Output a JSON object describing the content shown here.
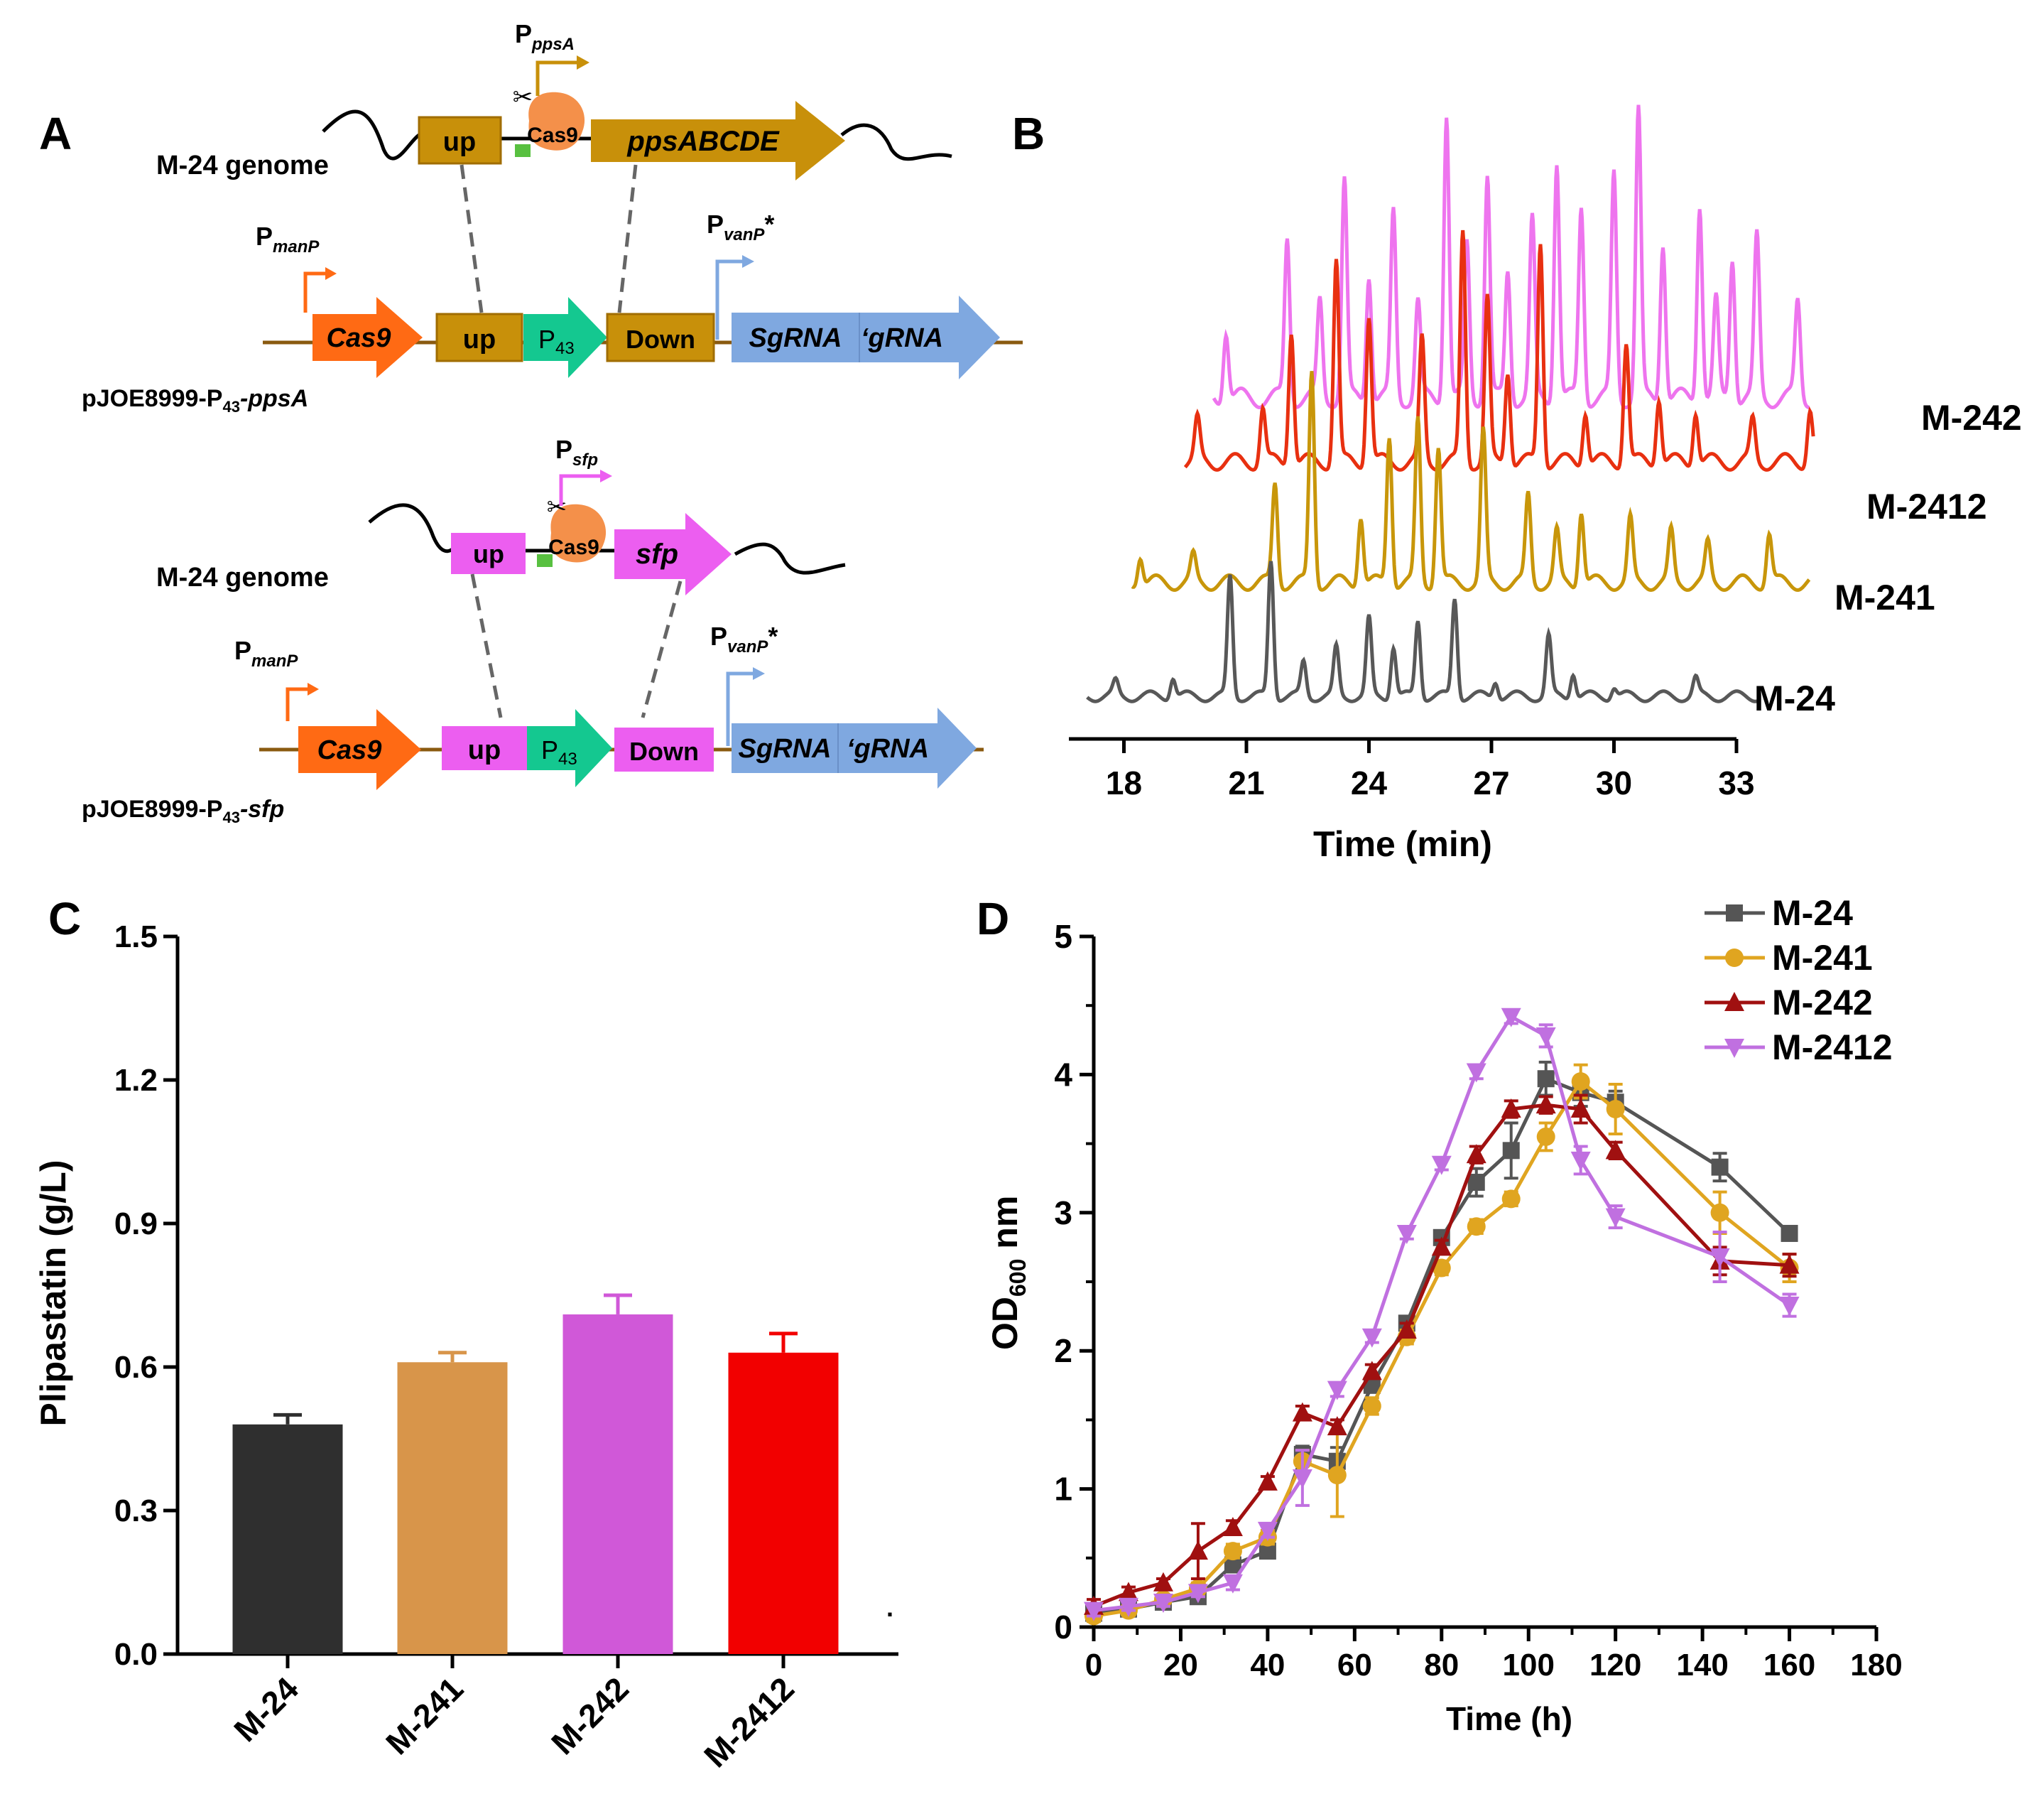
{
  "colors": {
    "ppsa_gold": "#c8900a",
    "sfp_magenta": "#ec5ef0",
    "cas9_orange": "#ff6a14",
    "p43_teal": "#14c890",
    "sgrna_blue": "#7fa8e0",
    "backbone": "#8a5a10",
    "m24": "#555555",
    "m241": "#d9a31a",
    "m242": "#9a1010",
    "m2412": "#c070e0",
    "trace_m242": "#ee74ee",
    "trace_m2412": "#e83010",
    "trace_m241": "#c8960a",
    "trace_m24": "#585858"
  },
  "panel_a": {
    "label": "A",
    "top": {
      "promoter": "P",
      "promoter_sub": "ppsA",
      "genome_label": "M-24 genome",
      "up": "up",
      "cas9": "Cas9",
      "gene": "ppsABCDE",
      "manP": "P",
      "manP_sub": "manP",
      "vanP": "P",
      "vanP_sub": "vanP",
      "vanP_star": "*",
      "cas9_gene": "Cas9",
      "p43": "P",
      "p43_sub": "43",
      "down": "Down",
      "sgrna": "SgRNA",
      "grna": "‘gRNA",
      "plasmid_a": "pJOE8999-P",
      "plasmid_sub": "43",
      "plasmid_b": "-ppsA"
    },
    "bottom": {
      "promoter": "P",
      "promoter_sub": "sfp",
      "genome_label": "M-24 genome",
      "up": "up",
      "cas9": "Cas9",
      "gene": "sfp",
      "manP": "P",
      "manP_sub": "manP",
      "vanP": "P",
      "vanP_sub": "vanP",
      "vanP_star": "*",
      "cas9_gene": "Cas9",
      "p43": "P",
      "p43_sub": "43",
      "down": "Down",
      "sgrna": "SgRNA",
      "grna": "‘gRNA",
      "plasmid_a": "pJOE8999-P",
      "plasmid_sub": "43",
      "plasmid_b": "-sfp"
    }
  },
  "chart_data": [
    {
      "panel": "B",
      "type": "line",
      "title": "",
      "xlabel": "Time (min)",
      "ylabel": "",
      "xlim": [
        17,
        33
      ],
      "xticks": [
        18,
        21,
        24,
        27,
        30,
        33
      ],
      "grid": false,
      "traces": [
        {
          "name": "M-242",
          "start": 20.2,
          "end": 34.8,
          "peaks": [
            [
              20.5,
              0.22
            ],
            [
              22.0,
              0.5
            ],
            [
              22.8,
              0.3
            ],
            [
              23.4,
              0.68
            ],
            [
              24.0,
              0.4
            ],
            [
              24.6,
              0.58
            ],
            [
              25.2,
              0.3
            ],
            [
              25.9,
              0.9
            ],
            [
              26.4,
              0.48
            ],
            [
              26.9,
              0.7
            ],
            [
              27.4,
              0.4
            ],
            [
              28.0,
              0.55
            ],
            [
              28.6,
              0.75
            ],
            [
              29.2,
              0.6
            ],
            [
              30.0,
              0.7
            ],
            [
              30.6,
              0.9
            ],
            [
              31.2,
              0.5
            ],
            [
              32.1,
              0.62
            ],
            [
              32.5,
              0.3
            ],
            [
              32.9,
              0.45
            ],
            [
              33.5,
              0.5
            ],
            [
              34.5,
              0.3
            ]
          ]
        },
        {
          "name": "M-2412",
          "start": 19.5,
          "end": 35.0,
          "peaks": [
            [
              19.8,
              0.15
            ],
            [
              21.4,
              0.2
            ],
            [
              22.1,
              0.5
            ],
            [
              23.2,
              0.75
            ],
            [
              24.0,
              0.55
            ],
            [
              25.3,
              0.45
            ],
            [
              26.3,
              0.85
            ],
            [
              26.9,
              0.6
            ],
            [
              27.4,
              0.35
            ],
            [
              28.2,
              0.82
            ],
            [
              29.3,
              0.2
            ],
            [
              30.3,
              0.45
            ],
            [
              31.1,
              0.25
            ],
            [
              32.0,
              0.2
            ],
            [
              33.4,
              0.15
            ],
            [
              34.8,
              0.2
            ]
          ]
        },
        {
          "name": "M-241",
          "start": 18.2,
          "end": 34.8,
          "peaks": [
            [
              18.4,
              0.12
            ],
            [
              19.7,
              0.1
            ],
            [
              21.7,
              0.4
            ],
            [
              22.6,
              0.85
            ],
            [
              23.8,
              0.28
            ],
            [
              24.5,
              0.6
            ],
            [
              25.2,
              0.65
            ],
            [
              25.7,
              0.55
            ],
            [
              26.8,
              0.6
            ],
            [
              27.9,
              0.35
            ],
            [
              28.6,
              0.2
            ],
            [
              29.2,
              0.3
            ],
            [
              30.4,
              0.25
            ],
            [
              31.4,
              0.2
            ],
            [
              32.3,
              0.15
            ],
            [
              33.8,
              0.2
            ]
          ]
        },
        {
          "name": "M-24",
          "start": 17.1,
          "end": 33.5,
          "peaks": [
            [
              17.8,
              0.08
            ],
            [
              19.2,
              0.12
            ],
            [
              20.6,
              0.7
            ],
            [
              21.6,
              0.8
            ],
            [
              22.4,
              0.2
            ],
            [
              23.2,
              0.28
            ],
            [
              24.0,
              0.45
            ],
            [
              24.6,
              0.3
            ],
            [
              25.2,
              0.45
            ],
            [
              26.1,
              0.58
            ],
            [
              27.1,
              0.1
            ],
            [
              28.4,
              0.35
            ],
            [
              29.0,
              0.15
            ],
            [
              30.0,
              0.06
            ],
            [
              32.0,
              0.1
            ]
          ]
        }
      ],
      "labels": [
        "M-242",
        "M-2412",
        "M-241",
        "M-24"
      ]
    },
    {
      "panel": "C",
      "type": "bar",
      "title": "",
      "xlabel": "",
      "ylabel": "Plipastatin (g/L)",
      "ylim": [
        0,
        1.5
      ],
      "yticks": [
        "0.0",
        "0.3",
        "0.6",
        "0.9",
        "1.2",
        "1.5"
      ],
      "categories": [
        "M-24",
        "M-241",
        "M-242",
        "M-2412"
      ],
      "values": [
        0.48,
        0.61,
        0.71,
        0.63
      ],
      "errors": [
        0.02,
        0.02,
        0.04,
        0.04
      ],
      "colors": [
        "#2f2f2f",
        "#d8954a",
        "#d058d8",
        "#f20000"
      ],
      "extra_mark": "."
    },
    {
      "panel": "D",
      "type": "line",
      "title": "",
      "xlabel": "Time (h)",
      "ylabel_a": "OD",
      "ylabel_sub": "600",
      "ylabel_b": " nm",
      "xlim": [
        0,
        180
      ],
      "ylim": [
        0,
        5
      ],
      "xticks": [
        0,
        20,
        40,
        60,
        80,
        100,
        120,
        140,
        160,
        180
      ],
      "yticks": [
        0,
        1,
        2,
        3,
        4,
        5
      ],
      "legend_position": "top-right",
      "x": [
        0,
        8,
        16,
        24,
        32,
        40,
        48,
        56,
        64,
        72,
        80,
        88,
        96,
        104,
        112,
        120,
        144,
        160
      ],
      "series": [
        {
          "name": "M-24",
          "marker": "square",
          "color": "#555555",
          "values": [
            0.1,
            0.13,
            0.18,
            0.22,
            0.45,
            0.55,
            1.25,
            1.2,
            1.75,
            2.2,
            2.82,
            3.22,
            3.45,
            3.97,
            3.87,
            3.8,
            3.33,
            2.85
          ],
          "err": [
            0.04,
            0.03,
            0.03,
            0.03,
            0.05,
            0.05,
            0.06,
            0.1,
            0.05,
            0.05,
            0.05,
            0.1,
            0.2,
            0.12,
            0.1,
            0.08,
            0.1,
            0.04
          ]
        },
        {
          "name": "M-241",
          "marker": "circle",
          "color": "#e0a520",
          "values": [
            0.08,
            0.12,
            0.2,
            0.28,
            0.55,
            0.65,
            1.2,
            1.1,
            1.6,
            2.1,
            2.6,
            2.9,
            3.1,
            3.55,
            3.95,
            3.75,
            3.0,
            2.6
          ],
          "err": [
            0.04,
            0.03,
            0.03,
            0.04,
            0.05,
            0.05,
            0.08,
            0.3,
            0.06,
            0.05,
            0.05,
            0.05,
            0.05,
            0.1,
            0.12,
            0.18,
            0.15,
            0.1
          ]
        },
        {
          "name": "M-242",
          "marker": "triangle",
          "color": "#a01010",
          "values": [
            0.15,
            0.25,
            0.32,
            0.55,
            0.72,
            1.05,
            1.55,
            1.45,
            1.85,
            2.15,
            2.75,
            3.42,
            3.75,
            3.78,
            3.75,
            3.45,
            2.65,
            2.62
          ],
          "err": [
            0.05,
            0.04,
            0.03,
            0.2,
            0.05,
            0.04,
            0.05,
            0.05,
            0.05,
            0.05,
            0.05,
            0.06,
            0.06,
            0.06,
            0.1,
            0.06,
            0.1,
            0.08
          ]
        },
        {
          "name": "M-2412",
          "marker": "triangle-down",
          "color": "#c070e0",
          "values": [
            0.12,
            0.15,
            0.18,
            0.25,
            0.32,
            0.7,
            1.08,
            1.72,
            2.1,
            2.85,
            3.35,
            4.02,
            4.42,
            4.28,
            3.38,
            2.97,
            2.68,
            2.33
          ]
        }
      ],
      "m2412_err": [
        0.04,
        0.03,
        0.03,
        0.03,
        0.05,
        0.05,
        0.2,
        0.05,
        0.04,
        0.04,
        0.04,
        0.05,
        0.05,
        0.08,
        0.1,
        0.08,
        0.18,
        0.08
      ]
    }
  ]
}
